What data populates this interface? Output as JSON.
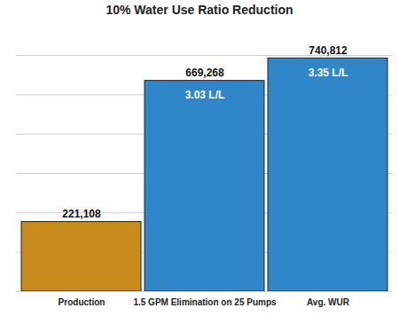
{
  "chart_data": {
    "type": "bar",
    "title": "10% Water Use Ratio Reduction",
    "categories": [
      "Production",
      "1.5 GPM Elimination on 25 Pumps",
      "Avg. WUR"
    ],
    "values": [
      221108,
      669268,
      740812
    ],
    "value_labels": [
      "221,108",
      "669,268",
      "740,812"
    ],
    "colors": [
      "#c98a1e",
      "#2f86c8",
      "#2f86c8"
    ],
    "annotations": [
      {
        "category": "1.5 GPM Elimination on 25 Pumps",
        "text": "3.03 L/L"
      },
      {
        "category": "Avg. WUR",
        "text": "3.35 L/L"
      }
    ],
    "ylim": [
      0,
      750000
    ],
    "yticks": [
      0,
      125000,
      250000,
      375000,
      500000,
      625000,
      750000
    ],
    "grid": true,
    "data_labels": true,
    "tick_labels": "x"
  }
}
